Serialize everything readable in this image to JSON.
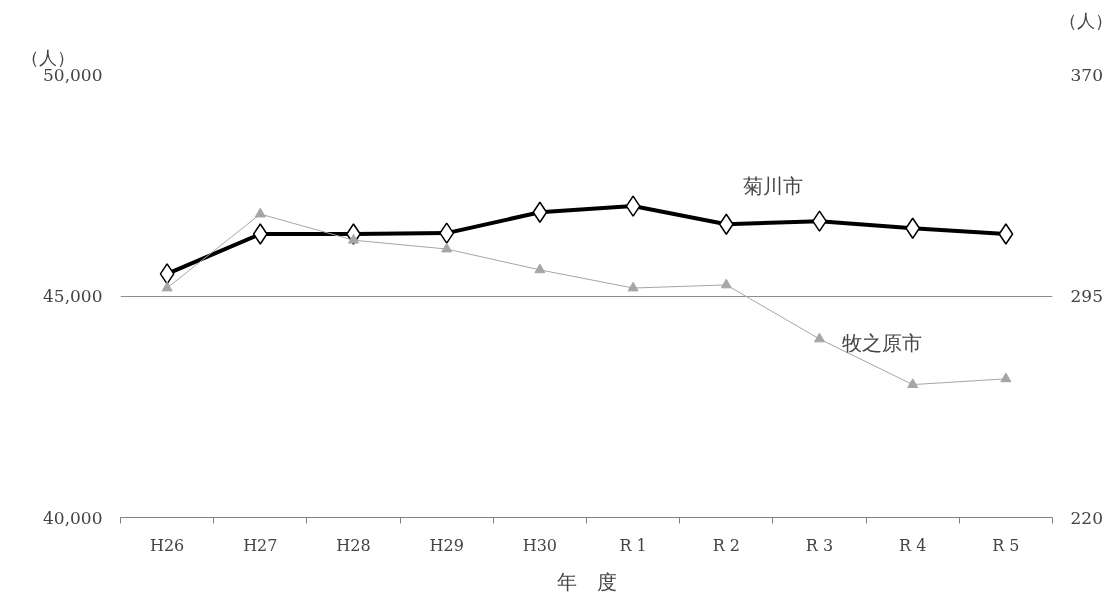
{
  "chart_data": {
    "type": "line",
    "categories": [
      "H26",
      "H27",
      "H28",
      "H29",
      "H30",
      "R 1",
      "R 2",
      "R 3",
      "R 4",
      "R 5"
    ],
    "series": [
      {
        "name": "菊川市",
        "color": "#000000",
        "marker": "diamond",
        "values": [
          45500,
          46400,
          46400,
          46420,
          46890,
          47030,
          46620,
          46690,
          46530,
          46400
        ]
      },
      {
        "name": "牧之原市",
        "color": "#a6a6a6",
        "marker": "triangle",
        "values": [
          45180,
          46850,
          46260,
          46060,
          45590,
          45180,
          45250,
          44030,
          43000,
          43130
        ]
      }
    ],
    "xlabel": "年　度",
    "ylabel": "（人）",
    "y2label": "（人）",
    "ylim": [
      40000,
      50000
    ],
    "yticks": [
      {
        "value": 40000,
        "label": "40,000"
      },
      {
        "value": 45000,
        "label": "45,000"
      },
      {
        "value": 50000,
        "label": "50,000"
      }
    ],
    "y2lim": [
      220,
      370
    ],
    "y2ticks": [
      220,
      295,
      370
    ],
    "grid": "y"
  }
}
